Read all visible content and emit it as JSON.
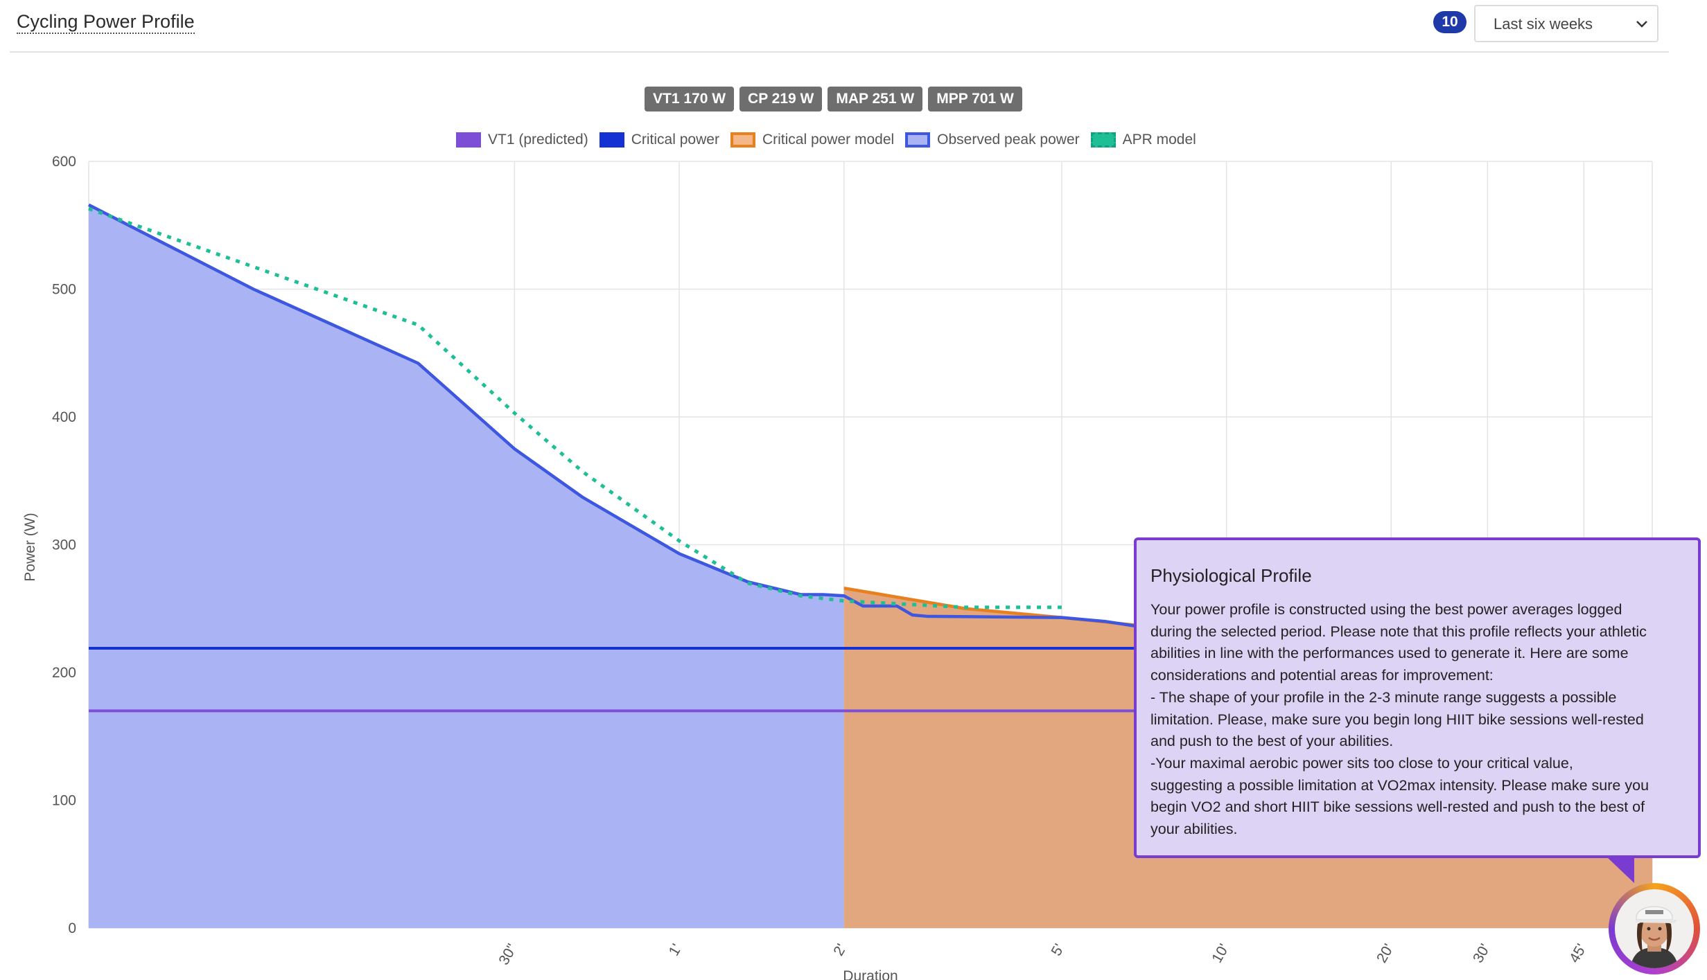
{
  "header": {
    "title": "Cycling Power Profile",
    "count_badge": "10",
    "period_select": {
      "value": "Last six weeks"
    }
  },
  "metric_badges": [
    "VT1 170 W",
    "CP 219 W",
    "MAP 251 W",
    "MPP 701 W"
  ],
  "legend": [
    {
      "label": "VT1 (predicted)",
      "color": "#7d4fd6"
    },
    {
      "label": "Critical power",
      "color": "#1432d4"
    },
    {
      "label": "Critical power model",
      "color": "#e8801f"
    },
    {
      "label": "Observed peak power",
      "color": "#3d57e0"
    },
    {
      "label": "APR model",
      "color": "#1fbf96"
    }
  ],
  "tooltip": {
    "title": "Physiological Profile",
    "lines": [
      "Your power profile is constructed using the best power averages logged",
      "during the selected period. Please note that this profile reflects your athletic",
      "abilities in line with the performances used to generate it. Here are some",
      "considerations and potential areas for improvement:",
      "- The shape of your profile in the 2-3 minute range suggests a possible",
      "limitation. Please, make sure you begin long HIIT bike sessions well-rested",
      "and push to the best of your abilities.",
      "-Your maximal aerobic power sits too close to your critical value,",
      "suggesting a possible limitation at VO2max intensity. Please make sure you",
      "begin VO2 and short HIIT bike sessions well-rested and push to the best of",
      "your abilities."
    ]
  },
  "chart_data": {
    "type": "area",
    "xlabel": "Duration",
    "ylabel": "Power (W)",
    "x_scale": "log",
    "x_unit": "seconds",
    "xlim": [
      5,
      3600
    ],
    "ylim": [
      0,
      600
    ],
    "y_ticks": [
      0,
      100,
      200,
      300,
      400,
      500,
      600
    ],
    "x_ticks": [
      {
        "value": 30,
        "label": "30\""
      },
      {
        "value": 60,
        "label": "1'"
      },
      {
        "value": 120,
        "label": "2'"
      },
      {
        "value": 300,
        "label": "5'"
      },
      {
        "value": 600,
        "label": "10'"
      },
      {
        "value": 1200,
        "label": "20'"
      },
      {
        "value": 1800,
        "label": "30'"
      },
      {
        "value": 2700,
        "label": "45'"
      }
    ],
    "grid": true,
    "legend_position": "top-center",
    "series": [
      {
        "name": "Observed peak power",
        "color": "#3d57e0",
        "fill": "#aab4f5",
        "x": [
          5,
          10,
          20,
          30,
          40,
          60,
          80,
          100,
          110,
          120,
          130,
          150,
          160,
          170,
          300,
          360,
          400,
          480
        ],
        "y": [
          566,
          500,
          442,
          375,
          337,
          293,
          271,
          261,
          261,
          260,
          252,
          252,
          245,
          244,
          243,
          240,
          237,
          232
        ]
      },
      {
        "name": "Critical power model",
        "color": "#e8801f",
        "fill": "#e2a77e",
        "x": [
          120,
          200,
          300,
          480,
          3600
        ],
        "y": [
          266,
          250,
          243,
          234,
          224
        ]
      },
      {
        "name": "APR model",
        "color": "#1fbf96",
        "dashed": true,
        "x": [
          5,
          20,
          30,
          40,
          60,
          80,
          100,
          120,
          200,
          300
        ],
        "y": [
          563,
          472,
          403,
          357,
          303,
          270,
          260,
          256,
          251,
          251
        ]
      },
      {
        "name": "Critical power",
        "color": "#1432d4",
        "value": 219
      },
      {
        "name": "VT1 (predicted)",
        "color": "#7d4fd6",
        "value": 170
      }
    ]
  }
}
